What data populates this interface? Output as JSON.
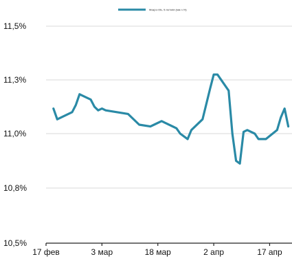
{
  "chart_data": {
    "type": "line",
    "title": "",
    "xlabel": "",
    "ylabel": "",
    "ylim": [
      10.5,
      11.6
    ],
    "xlim": [
      "2024-02-17",
      "2024-04-23"
    ],
    "y_ticks": [
      {
        "value": 10.5,
        "label": "10,5%"
      },
      {
        "value": 10.8,
        "label": "10,8%"
      },
      {
        "value": 11.0,
        "label": "11,0%"
      },
      {
        "value": 11.3,
        "label": "11,3%"
      },
      {
        "value": 11.5,
        "label": "11,5%"
      }
    ],
    "x_ticks": [
      {
        "date": "2024-02-17",
        "label": "17 фев"
      },
      {
        "date": "2024-03-03",
        "label": "3 мар"
      },
      {
        "date": "2024-03-18",
        "label": "18 мар"
      },
      {
        "date": "2024-04-02",
        "label": "2 апр"
      },
      {
        "date": "2024-04-17",
        "label": "17 апр"
      }
    ],
    "grid": true,
    "legend_position": "top-center",
    "series": [
      {
        "name": "Макро-ОБ, 5-летняя (мм.ч.%)",
        "color": "#2a8aa6",
        "points": [
          {
            "x": "2024-02-19",
            "y": 11.14
          },
          {
            "x": "2024-02-20",
            "y": 11.08
          },
          {
            "x": "2024-02-24",
            "y": 11.12
          },
          {
            "x": "2024-02-25",
            "y": 11.16
          },
          {
            "x": "2024-02-26",
            "y": 11.22
          },
          {
            "x": "2024-02-29",
            "y": 11.19
          },
          {
            "x": "2024-03-01",
            "y": 11.15
          },
          {
            "x": "2024-03-02",
            "y": 11.13
          },
          {
            "x": "2024-03-03",
            "y": 11.14
          },
          {
            "x": "2024-03-04",
            "y": 11.13
          },
          {
            "x": "2024-03-10",
            "y": 11.11
          },
          {
            "x": "2024-03-13",
            "y": 11.05
          },
          {
            "x": "2024-03-16",
            "y": 11.04
          },
          {
            "x": "2024-03-17",
            "y": 11.05
          },
          {
            "x": "2024-03-19",
            "y": 11.07
          },
          {
            "x": "2024-03-20",
            "y": 11.06
          },
          {
            "x": "2024-03-23",
            "y": 11.03
          },
          {
            "x": "2024-03-24",
            "y": 11.0
          },
          {
            "x": "2024-03-26",
            "y": 10.98
          },
          {
            "x": "2024-03-27",
            "y": 11.02
          },
          {
            "x": "2024-03-30",
            "y": 11.08
          },
          {
            "x": "2024-04-01",
            "y": 11.25
          },
          {
            "x": "2024-04-02",
            "y": 11.32
          },
          {
            "x": "2024-04-03",
            "y": 11.32
          },
          {
            "x": "2024-04-06",
            "y": 11.24
          },
          {
            "x": "2024-04-07",
            "y": 11.0
          },
          {
            "x": "2024-04-08",
            "y": 10.9
          },
          {
            "x": "2024-04-09",
            "y": 10.89
          },
          {
            "x": "2024-04-10",
            "y": 11.01
          },
          {
            "x": "2024-04-11",
            "y": 11.02
          },
          {
            "x": "2024-04-13",
            "y": 11.0
          },
          {
            "x": "2024-04-14",
            "y": 10.98
          },
          {
            "x": "2024-04-16",
            "y": 10.98
          },
          {
            "x": "2024-04-19",
            "y": 11.02
          },
          {
            "x": "2024-04-20",
            "y": 11.09
          },
          {
            "x": "2024-04-21",
            "y": 11.14
          },
          {
            "x": "2024-04-22",
            "y": 11.04
          }
        ]
      }
    ]
  }
}
